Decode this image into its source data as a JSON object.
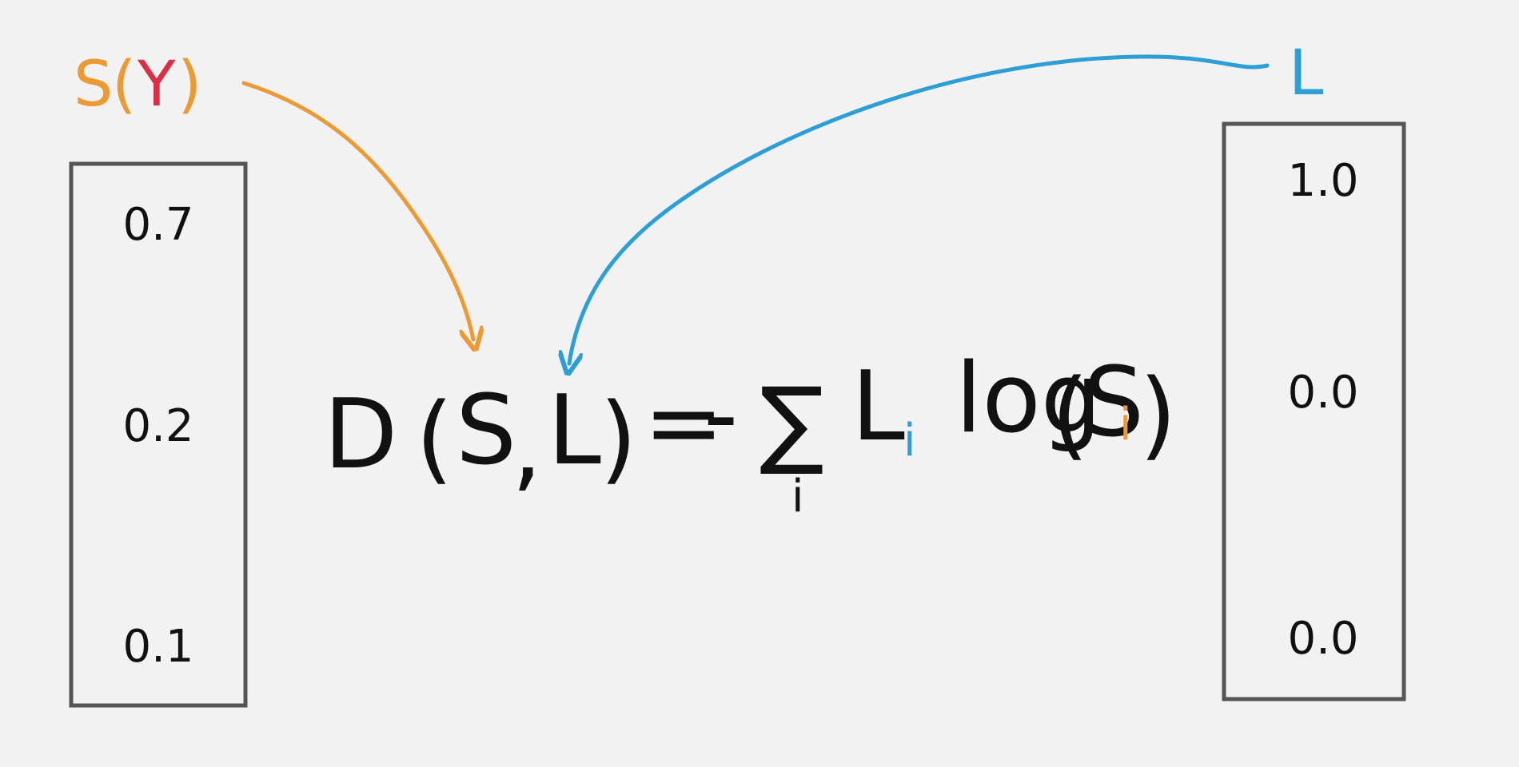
{
  "colors": {
    "background": "#f2f2f2",
    "orange": "#eb9a35",
    "red": "#d93048",
    "blue": "#2e9fd6",
    "green": "#2b8a4e",
    "ink": "#111111",
    "box": "#555555"
  },
  "left_vector": {
    "label_s": "S",
    "label_open": "(",
    "label_y": "Y",
    "label_close": ")",
    "values": [
      "0.7",
      "0.2",
      "0.1"
    ]
  },
  "right_vector": {
    "label": "L",
    "values": [
      "1.0",
      "0.0",
      "0.0"
    ]
  },
  "equation": {
    "d": "D",
    "open1": "(",
    "s": "S",
    "comma": ",",
    "l": "L",
    "close1": ")",
    "equals": "=",
    "minus": "-",
    "sum": "∑",
    "sum_index": "i",
    "l_i": "L",
    "l_i_sub": "i",
    "log": "log",
    "open2": "(",
    "s_i": "S",
    "s_i_sub": "i",
    "close2": ")"
  }
}
